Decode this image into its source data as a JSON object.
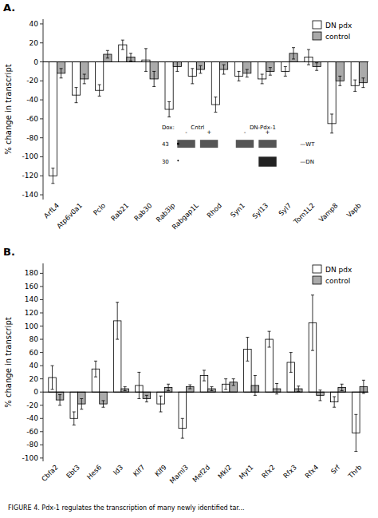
{
  "chart_data": [
    {
      "type": "bar",
      "title": "A.",
      "ylabel": "% change in transcript",
      "categories": [
        "ArfL4",
        "Atp6v0a1",
        "Pclo",
        "Rab21",
        "Rab30",
        "Rab3ip",
        "Rabgap1L",
        "Rhod",
        "Syn1",
        "Syl13",
        "Syl7",
        "Tom1L2",
        "Vamp8",
        "Vapb"
      ],
      "series": [
        {
          "name": "DN pdx",
          "color": "white",
          "values": [
            -120,
            -35,
            -30,
            18,
            2,
            -50,
            -15,
            -45,
            -15,
            -18,
            -10,
            5,
            -65,
            -25
          ],
          "errors": [
            8,
            8,
            6,
            5,
            12,
            8,
            8,
            8,
            5,
            5,
            5,
            8,
            10,
            6
          ]
        },
        {
          "name": "control",
          "color": "#aaaaaa",
          "values": [
            -12,
            -18,
            8,
            5,
            -18,
            -5,
            -8,
            -8,
            -12,
            -10,
            9,
            -5,
            -20,
            -22
          ],
          "errors": [
            5,
            5,
            4,
            4,
            8,
            5,
            4,
            5,
            4,
            4,
            6,
            4,
            5,
            5
          ]
        }
      ],
      "ylim": [
        -145,
        45
      ],
      "yticks": [
        -140,
        -120,
        -100,
        -80,
        -60,
        -40,
        -20,
        0,
        20,
        40
      ],
      "grid": false,
      "legend": "upper right",
      "annotations": [
        "Dox:",
        "Cntrl",
        "DN-Pdx-1",
        "-",
        "+",
        "-",
        "+",
        "43",
        "30",
        "—WT",
        "—DN"
      ]
    },
    {
      "type": "bar",
      "title": "B.",
      "ylabel": "% change in transcript",
      "categories": [
        "Cbfa2",
        "Ebt3",
        "Hes6",
        "Id3",
        "Klf7",
        "Klf9",
        "Maml3",
        "Mef2d",
        "Mkl2",
        "Myt1",
        "Rfx2",
        "Rfx3",
        "Rfx4",
        "Srf",
        "Thrb"
      ],
      "series": [
        {
          "name": "DN pdx",
          "color": "white",
          "values": [
            22,
            -40,
            35,
            108,
            10,
            -18,
            -55,
            25,
            12,
            65,
            80,
            45,
            105,
            -15,
            -62
          ],
          "errors": [
            18,
            10,
            12,
            28,
            20,
            12,
            15,
            8,
            8,
            18,
            12,
            15,
            42,
            8,
            28
          ]
        },
        {
          "name": "control",
          "color": "#aaaaaa",
          "values": [
            -12,
            -18,
            -18,
            5,
            -10,
            7,
            8,
            5,
            15,
            10,
            5,
            5,
            -5,
            7,
            8
          ],
          "errors": [
            8,
            8,
            5,
            3,
            5,
            5,
            3,
            3,
            5,
            15,
            8,
            4,
            8,
            5,
            10
          ]
        }
      ],
      "ylim": [
        -105,
        195
      ],
      "yticks": [
        -100,
        -80,
        -60,
        -40,
        -20,
        0,
        20,
        40,
        60,
        80,
        100,
        120,
        140,
        160,
        180
      ],
      "grid": false,
      "legend": "upper right",
      "annotations": [
        "FIGURE 4. Pdx-1 regulates the transcription of many newly identified tar..."
      ]
    }
  ]
}
